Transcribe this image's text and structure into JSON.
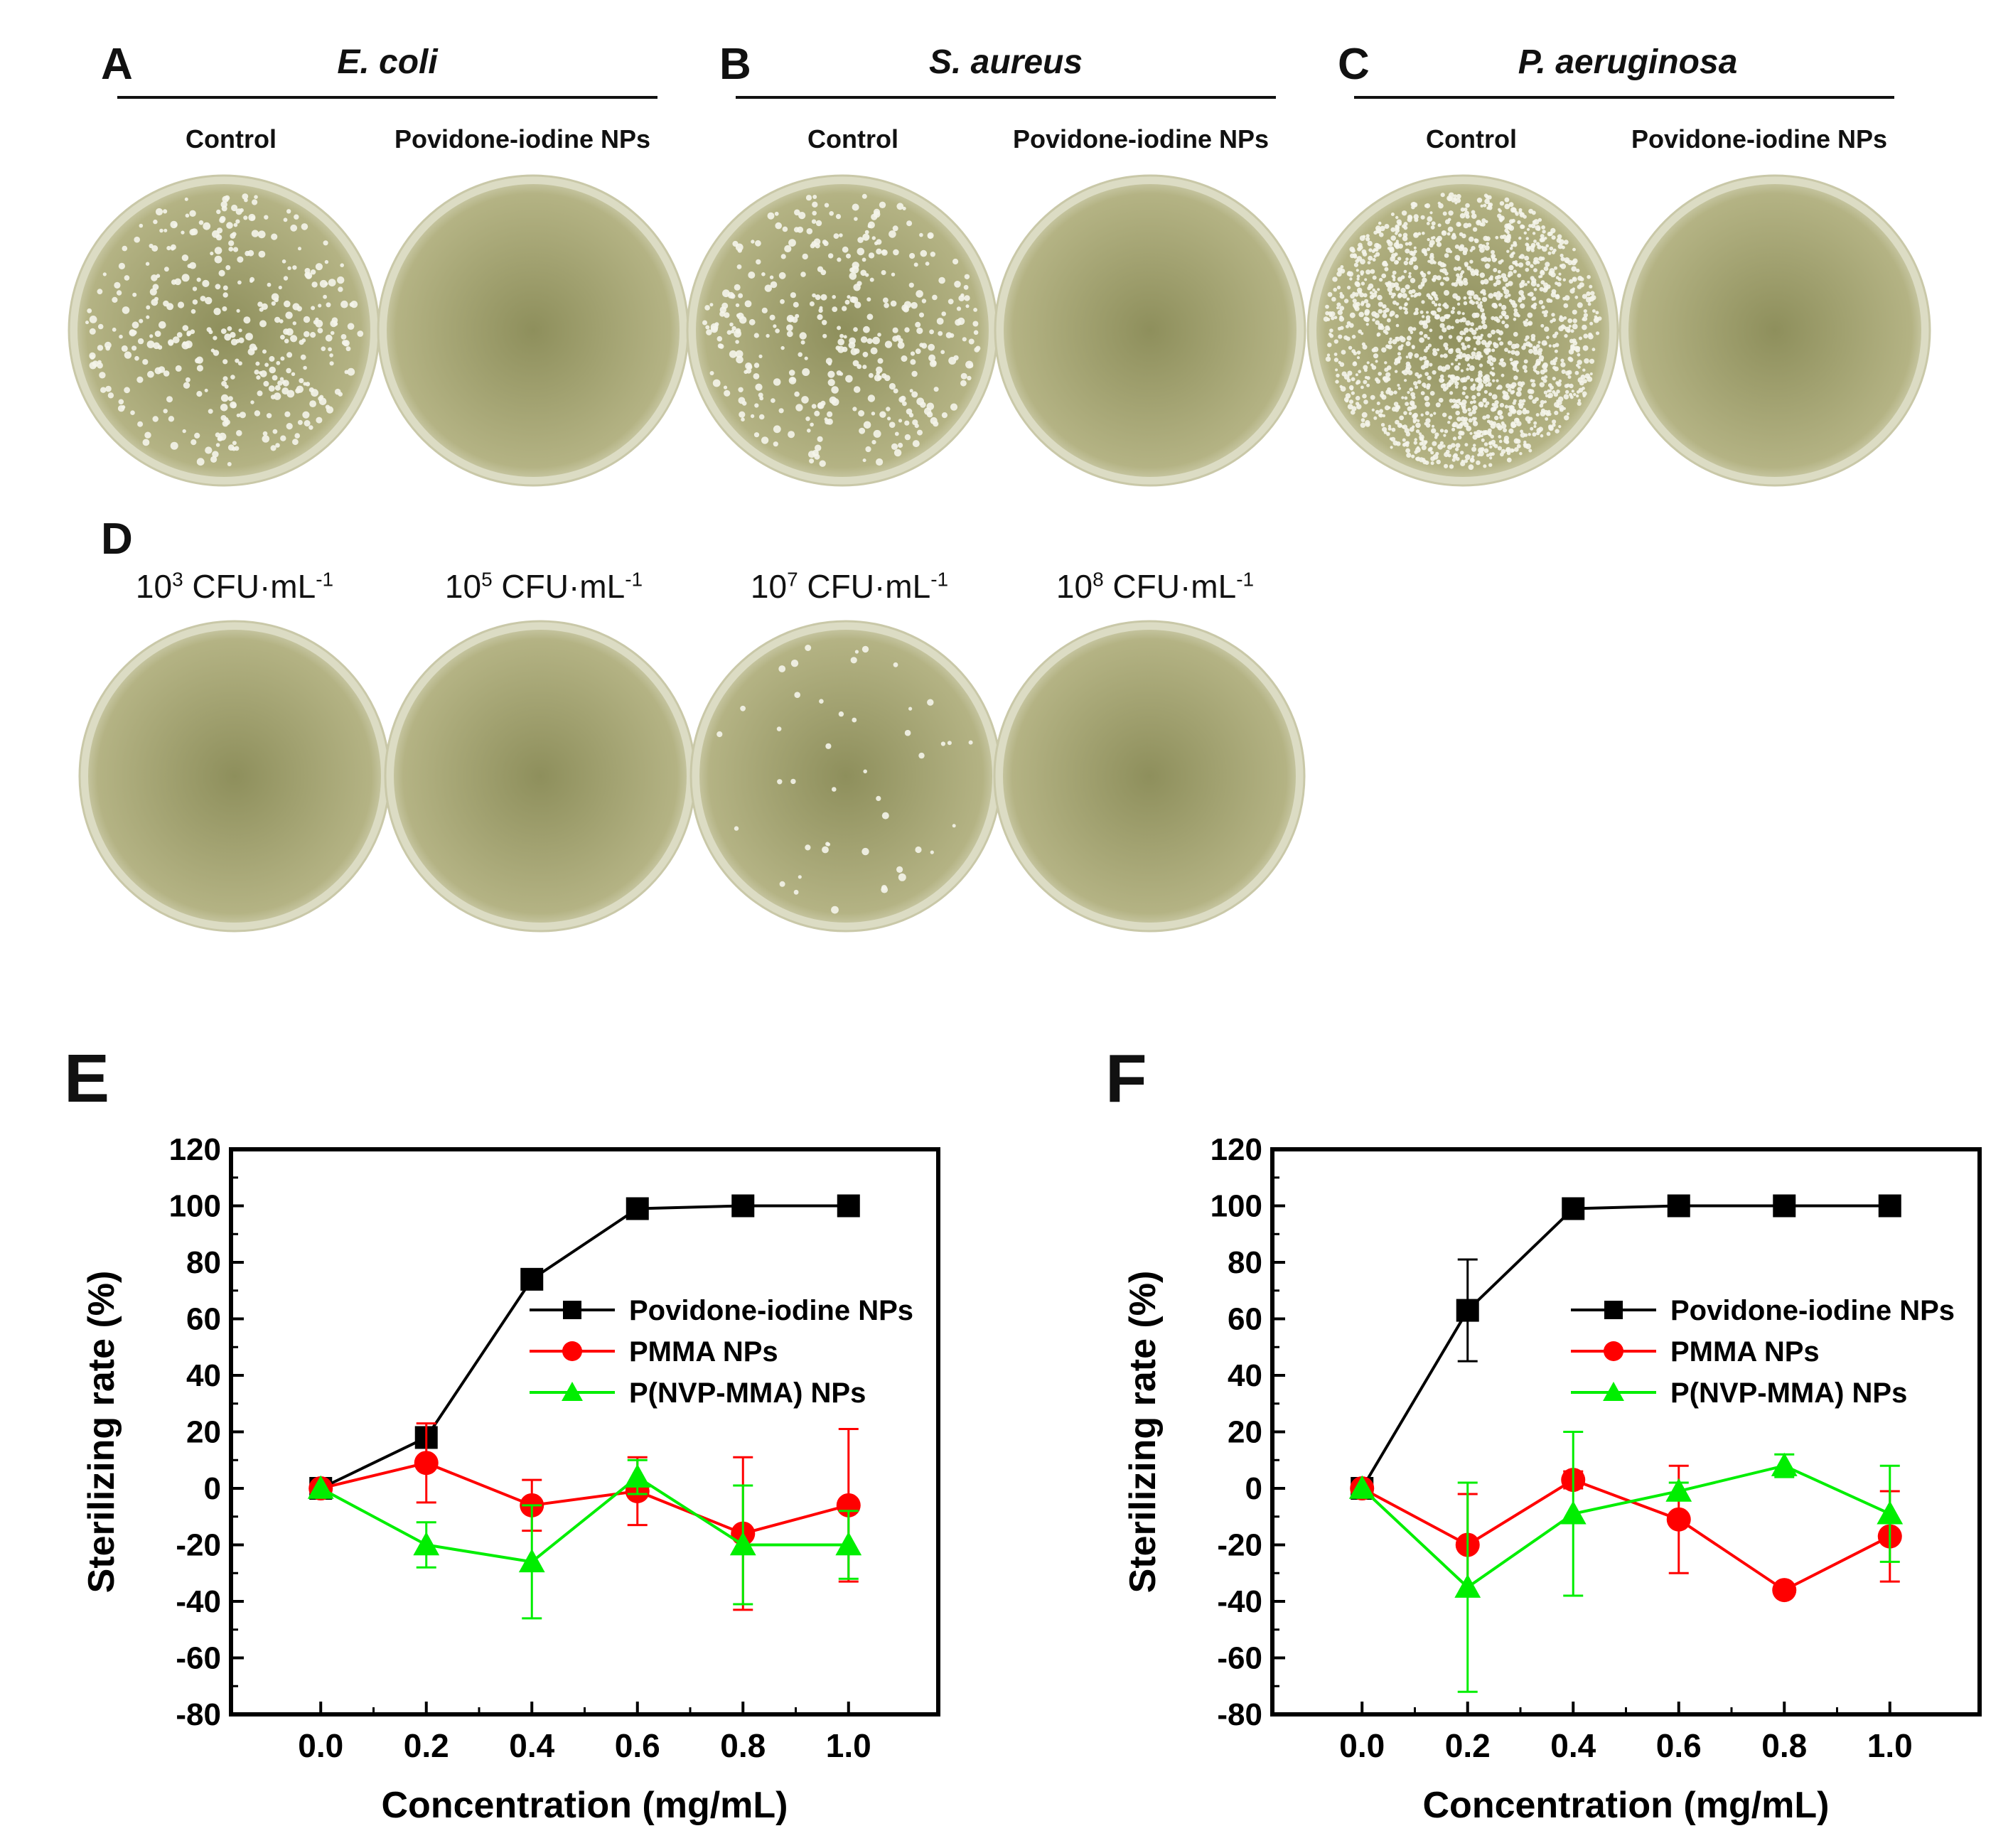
{
  "figure": {
    "panels_plates": {
      "A": {
        "letter": "A",
        "organism": "E. coli",
        "control": "Control",
        "treated": "Povidone-iodine NPs"
      },
      "B": {
        "letter": "B",
        "organism": "S. aureus",
        "control": "Control",
        "treated": "Povidone-iodine NPs"
      },
      "C": {
        "letter": "C",
        "organism": "P. aeruginosa",
        "control": "Control",
        "treated": "Povidone-iodine NPs"
      }
    },
    "panel_d": {
      "letter": "D",
      "dilutions": [
        {
          "base": "10",
          "exp": "3",
          "unit": " CFU·mL",
          "unit_exp": "-1"
        },
        {
          "base": "10",
          "exp": "5",
          "unit": " CFU·mL",
          "unit_exp": "-1"
        },
        {
          "base": "10",
          "exp": "7",
          "unit": " CFU·mL",
          "unit_exp": "-1"
        },
        {
          "base": "10",
          "exp": "8",
          "unit": " CFU·mL",
          "unit_exp": "-1"
        }
      ]
    },
    "plates": {
      "colors": {
        "agar": "#8e8f5c",
        "agar_light": "#b4b384",
        "rim": "#dcdcc4",
        "colony": "#f4f4ea"
      },
      "colony_density": {
        "A_control": "medium",
        "A_treated": "none",
        "B_control": "medium",
        "B_treated": "none",
        "C_control": "high",
        "C_treated": "none",
        "D1": "none",
        "D2": "none",
        "D3": "low",
        "D4": "none"
      }
    }
  },
  "chart_data": [
    {
      "id": "E",
      "letter": "E",
      "type": "line",
      "xlabel": "Concentration (mg/mL)",
      "ylabel": "Sterilizing rate (%)",
      "xlim": [
        -0.17,
        1.17
      ],
      "ylim": [
        -80,
        120
      ],
      "xticks": [
        0.0,
        0.2,
        0.4,
        0.6,
        0.8,
        1.0
      ],
      "xtick_labels": [
        "0.0",
        "0.2",
        "0.4",
        "0.6",
        "0.8",
        "1.0"
      ],
      "yticks": [
        -80,
        -60,
        -40,
        -20,
        0,
        20,
        40,
        60,
        80,
        100,
        120
      ],
      "ytick_labels": [
        "-80",
        "-60",
        "-40",
        "-20",
        "0",
        "20",
        "40",
        "60",
        "80",
        "100",
        "120"
      ],
      "legend_position": "right",
      "x": [
        0.0,
        0.2,
        0.4,
        0.6,
        0.8,
        1.0
      ],
      "series": [
        {
          "name": "Povidone-iodine NPs",
          "color": "#000000",
          "marker": "square",
          "values": [
            0,
            18,
            74,
            99,
            100,
            100
          ],
          "errors": [
            0,
            2,
            1,
            1,
            0,
            0
          ]
        },
        {
          "name": "PMMA NPs",
          "color": "#ff0000",
          "marker": "circle",
          "values": [
            0,
            9,
            -6,
            -1,
            -16,
            -6
          ],
          "errors": [
            0,
            14,
            9,
            12,
            27,
            27
          ]
        },
        {
          "name": "P(NVP-MMA) NPs",
          "color": "#00ee00",
          "marker": "triangle",
          "values": [
            0,
            -20,
            -26,
            4,
            -20,
            -20
          ],
          "errors": [
            0,
            8,
            20,
            6,
            21,
            12
          ]
        }
      ]
    },
    {
      "id": "F",
      "letter": "F",
      "type": "line",
      "xlabel": "Concentration (mg/mL)",
      "ylabel": "Sterilizing rate (%)",
      "xlim": [
        -0.17,
        1.17
      ],
      "ylim": [
        -80,
        120
      ],
      "xticks": [
        0.0,
        0.2,
        0.4,
        0.6,
        0.8,
        1.0
      ],
      "xtick_labels": [
        "0.0",
        "0.2",
        "0.4",
        "0.6",
        "0.8",
        "1.0"
      ],
      "yticks": [
        -80,
        -60,
        -40,
        -20,
        0,
        20,
        40,
        60,
        80,
        100,
        120
      ],
      "ytick_labels": [
        "-80",
        "-60",
        "-40",
        "-20",
        "0",
        "20",
        "40",
        "60",
        "80",
        "100",
        "120"
      ],
      "legend_position": "right",
      "x": [
        0.0,
        0.2,
        0.4,
        0.6,
        0.8,
        1.0
      ],
      "series": [
        {
          "name": "Povidone-iodine NPs",
          "color": "#000000",
          "marker": "square",
          "values": [
            0,
            63,
            99,
            100,
            100,
            100
          ],
          "errors": [
            0,
            18,
            1,
            0,
            0,
            0
          ]
        },
        {
          "name": "PMMA NPs",
          "color": "#ff0000",
          "marker": "circle",
          "values": [
            0,
            -20,
            3,
            -11,
            -36,
            -17
          ],
          "errors": [
            0,
            18,
            3,
            19,
            2,
            16
          ]
        },
        {
          "name": "P(NVP-MMA) NPs",
          "color": "#00ee00",
          "marker": "triangle",
          "values": [
            0,
            -35,
            -9,
            -1,
            8,
            -9
          ],
          "errors": [
            0,
            37,
            29,
            3,
            4,
            17
          ]
        }
      ]
    }
  ]
}
